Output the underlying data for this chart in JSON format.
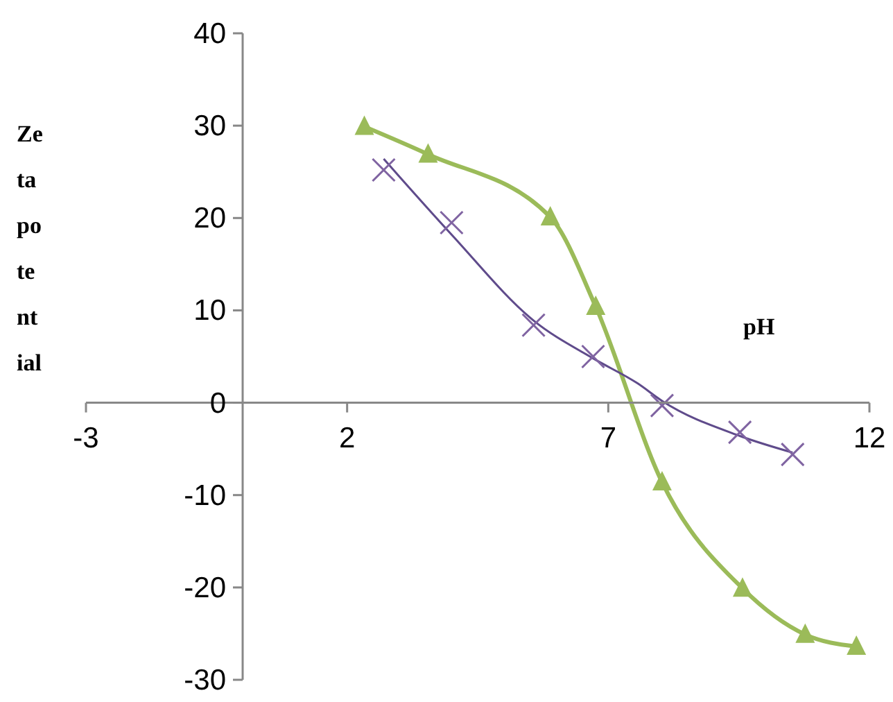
{
  "chart_data": {
    "type": "line",
    "xlabel": "pH",
    "ylabel": "Zeta potential",
    "xlim": [
      -3,
      12
    ],
    "ylim": [
      -30,
      40
    ],
    "xticks": [
      -3,
      2,
      7,
      12
    ],
    "yticks": [
      -30,
      -20,
      -10,
      0,
      10,
      20,
      30,
      40
    ],
    "series": [
      {
        "color": "#9bbb59",
        "marker": "triangle",
        "x": [
          2.33,
          3.55,
          5.89,
          6.76,
          8.03,
          9.57,
          10.77,
          11.75
        ],
        "values": [
          29.9,
          26.9,
          20.1,
          10.4,
          -8.6,
          -20.1,
          -25.1,
          -26.4
        ]
      },
      {
        "type": "scatter",
        "color": "#8064a2",
        "marker": "cross",
        "x": [
          2.7,
          4.0,
          5.57,
          6.71,
          8.03,
          9.52,
          10.53
        ],
        "values": [
          25.2,
          19.5,
          8.4,
          5.0,
          -0.3,
          -3.2,
          -5.6
        ]
      },
      {
        "type": "line",
        "color": "#5f4b8b",
        "marker": "none",
        "x": [
          2.7,
          4.0,
          5.57,
          6.71,
          7.56,
          8.03,
          9.52,
          10.53
        ],
        "values": [
          26.4,
          18.2,
          8.9,
          4.8,
          2.1,
          0.2,
          -3.6,
          -5.4
        ]
      }
    ]
  }
}
